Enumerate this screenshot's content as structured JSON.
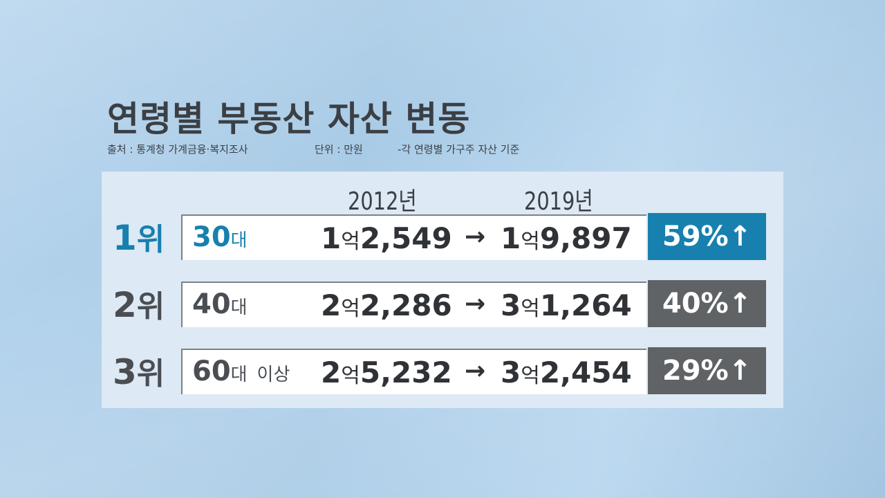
{
  "title": "연령별 부동산 자산 변동",
  "source": "출처 : 통계청 가계금융·복지조사",
  "unit": "단위 : 만원",
  "note": "-각 연령별 가구주 자산 기준",
  "colors": {
    "highlight": "#1780ae",
    "badge": "#5f6366",
    "background": "#a9cbe6"
  },
  "chart_data": {
    "type": "table",
    "columns": [
      "2012년",
      "2019년"
    ],
    "arrow": "→",
    "rows": [
      {
        "rank": "1",
        "rank_unit": "위",
        "age": "30",
        "age_unit": "대",
        "age_extra": "",
        "v2012": {
          "eok": "1",
          "unit": "억",
          "man": "2,549"
        },
        "v2019": {
          "eok": "1",
          "unit": "억",
          "man": "9,897"
        },
        "change": "59%↑"
      },
      {
        "rank": "2",
        "rank_unit": "위",
        "age": "40",
        "age_unit": "대",
        "age_extra": "",
        "v2012": {
          "eok": "2",
          "unit": "억",
          "man": "2,286"
        },
        "v2019": {
          "eok": "3",
          "unit": "억",
          "man": "1,264"
        },
        "change": "40%↑"
      },
      {
        "rank": "3",
        "rank_unit": "위",
        "age": "60",
        "age_unit": "대",
        "age_extra": "이상",
        "v2012": {
          "eok": "2",
          "unit": "억",
          "man": "5,232"
        },
        "v2019": {
          "eok": "3",
          "unit": "억",
          "man": "2,454"
        },
        "change": "29%↑"
      }
    ]
  }
}
